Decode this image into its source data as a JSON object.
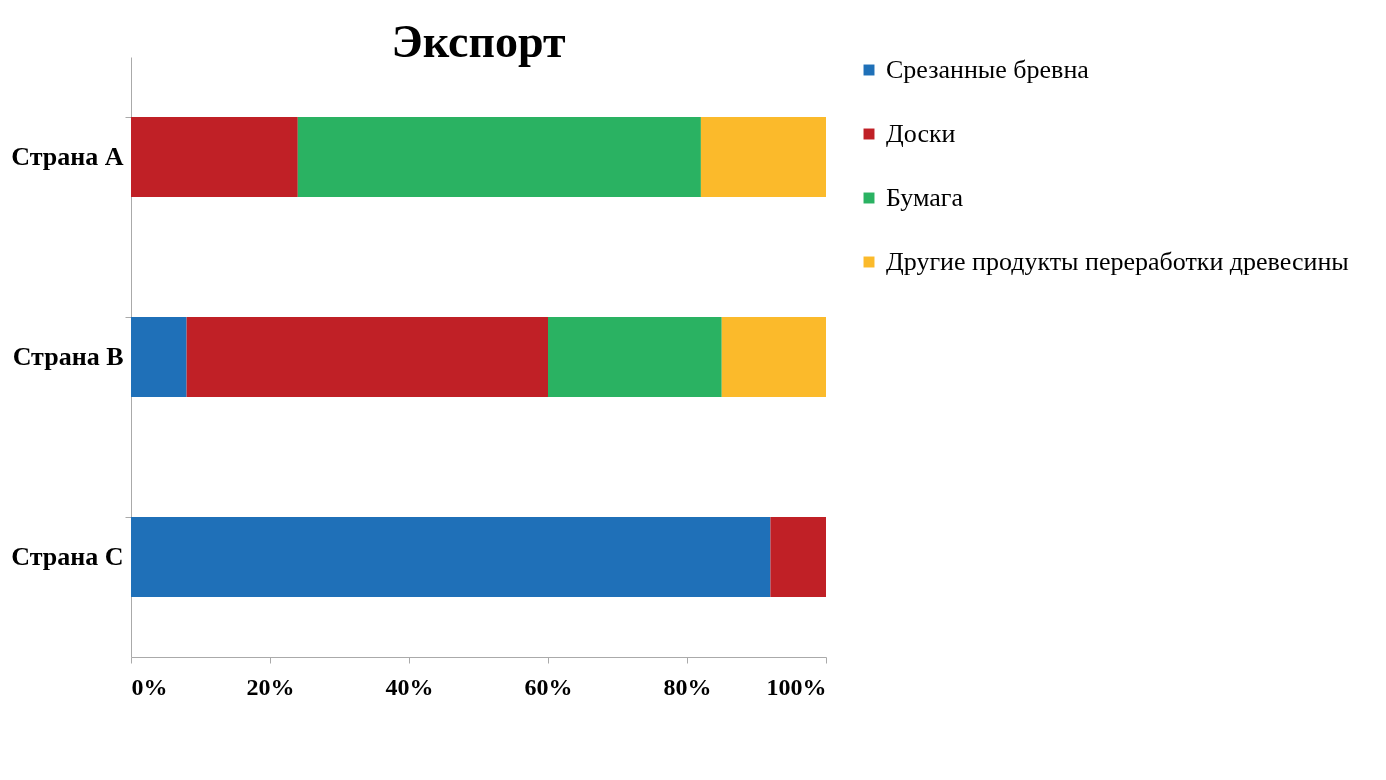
{
  "chart_data": {
    "type": "bar",
    "orientation": "horizontal",
    "stacked": true,
    "title": "Экспорт",
    "categories": [
      "Страна A",
      "Страна B",
      "Страна C"
    ],
    "series": [
      {
        "name": "Срезанные бревна",
        "color": "#1f70b8",
        "values": [
          0,
          8,
          92
        ]
      },
      {
        "name": "Доски",
        "color": "#c02026",
        "values": [
          24,
          52,
          8
        ]
      },
      {
        "name": "Бумага",
        "color": "#2ab262",
        "values": [
          58,
          25,
          0
        ]
      },
      {
        "name": "Другие продукты переработки древесины",
        "color": "#fbba2b",
        "values": [
          18,
          15,
          0
        ]
      }
    ],
    "xlim": [
      0,
      100
    ],
    "xticks": [
      {
        "value": 0,
        "label": "0%"
      },
      {
        "value": 20,
        "label": "20%"
      },
      {
        "value": 40,
        "label": "40%"
      },
      {
        "value": 60,
        "label": "60%"
      },
      {
        "value": 80,
        "label": "80%"
      },
      {
        "value": 100,
        "label": "100%"
      }
    ],
    "grid": false,
    "legend": "right"
  }
}
